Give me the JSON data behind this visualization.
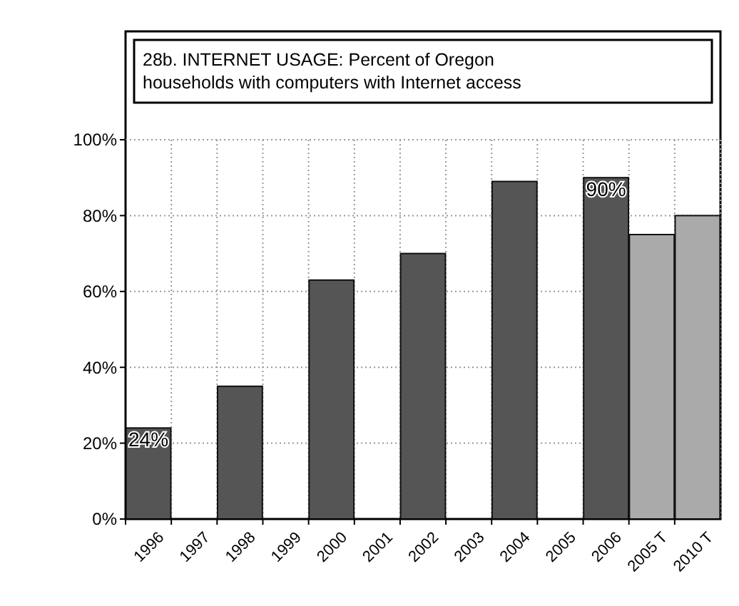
{
  "chart_data": {
    "type": "bar",
    "title": "28b. INTERNET USAGE: Percent of Oregon households with computers with Internet access",
    "categories": [
      "1996",
      "1997",
      "1998",
      "1999",
      "2000",
      "2001",
      "2002",
      "2003",
      "2004",
      "2005",
      "2006",
      "2005 T",
      "2010 T"
    ],
    "values": [
      24,
      null,
      35,
      null,
      63,
      null,
      70,
      null,
      89,
      null,
      90,
      75,
      80
    ],
    "colors": [
      "#555555",
      null,
      "#555555",
      null,
      "#555555",
      null,
      "#555555",
      null,
      "#555555",
      null,
      "#555555",
      "#aaaaaa",
      "#aaaaaa"
    ],
    "value_labels": [
      "24%",
      null,
      null,
      null,
      null,
      null,
      null,
      null,
      null,
      null,
      "90%",
      null,
      null
    ],
    "ylim": [
      0,
      100
    ],
    "yticks": [
      {
        "value": 0,
        "label": "0%"
      },
      {
        "value": 20,
        "label": "20%"
      },
      {
        "value": 40,
        "label": "40%"
      },
      {
        "value": 60,
        "label": "60%"
      },
      {
        "value": 80,
        "label": "80%"
      },
      {
        "value": 100,
        "label": "100%"
      }
    ],
    "grid": true
  }
}
